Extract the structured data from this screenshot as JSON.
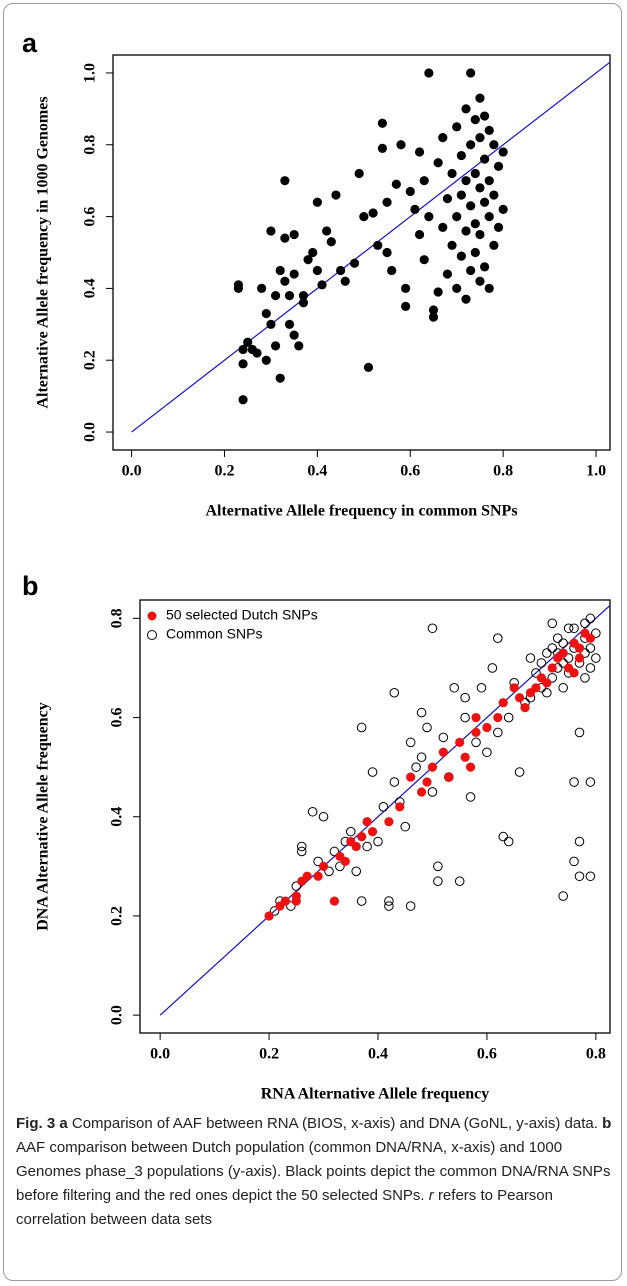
{
  "chart_data": [
    {
      "type": "scatter",
      "label": "a",
      "xlabel": "Alternative Allele frequency in common SNPs",
      "ylabel": "Alternative Allele frequency in 1000 Genomes",
      "xlim": [
        -0.04,
        1.03
      ],
      "ylim": [
        -0.05,
        1.05
      ],
      "xticks": [
        {
          "value": 0,
          "label": "0.0"
        },
        0.2,
        0.4,
        0.6,
        0.8,
        {
          "value": 1,
          "label": "1.0"
        }
      ],
      "yticks": [
        {
          "value": 0,
          "label": "0.0"
        },
        0.2,
        0.4,
        0.6,
        0.8,
        {
          "value": 1,
          "label": "1.0"
        }
      ],
      "diagonal": true,
      "diagonal_color": "#1010d0",
      "grid": false,
      "series": [
        {
          "color": "#000000",
          "marker": "filled",
          "x": [
            0.23,
            0.23,
            0.24,
            0.24,
            0.25,
            0.24,
            0.26,
            0.27,
            0.28,
            0.29,
            0.29,
            0.3,
            0.3,
            0.31,
            0.31,
            0.32,
            0.32,
            0.33,
            0.33,
            0.33,
            0.34,
            0.34,
            0.35,
            0.35,
            0.35,
            0.36,
            0.37,
            0.37,
            0.38,
            0.39,
            0.4,
            0.4,
            0.41,
            0.42,
            0.43,
            0.44,
            0.45,
            0.46,
            0.48,
            0.49,
            0.5,
            0.51,
            0.52,
            0.53,
            0.54,
            0.54,
            0.55,
            0.55,
            0.56,
            0.57,
            0.58,
            0.59,
            0.59,
            0.6,
            0.61,
            0.62,
            0.62,
            0.63,
            0.63,
            0.64,
            0.64,
            0.65,
            0.65,
            0.66,
            0.66,
            0.67,
            0.67,
            0.68,
            0.68,
            0.69,
            0.69,
            0.7,
            0.7,
            0.7,
            0.71,
            0.71,
            0.71,
            0.72,
            0.72,
            0.72,
            0.72,
            0.73,
            0.73,
            0.73,
            0.73,
            0.74,
            0.74,
            0.74,
            0.74,
            0.75,
            0.75,
            0.75,
            0.75,
            0.75,
            0.76,
            0.76,
            0.76,
            0.76,
            0.77,
            0.77,
            0.77,
            0.77,
            0.78,
            0.78,
            0.78,
            0.79,
            0.79,
            0.8,
            0.8
          ],
          "values": [
            0.41,
            0.4,
            0.09,
            0.19,
            0.25,
            0.23,
            0.23,
            0.22,
            0.4,
            0.2,
            0.33,
            0.56,
            0.3,
            0.24,
            0.38,
            0.15,
            0.45,
            0.7,
            0.54,
            0.42,
            0.38,
            0.3,
            0.55,
            0.44,
            0.27,
            0.24,
            0.38,
            0.36,
            0.48,
            0.5,
            0.45,
            0.64,
            0.41,
            0.56,
            0.53,
            0.66,
            0.45,
            0.42,
            0.47,
            0.72,
            0.6,
            0.18,
            0.61,
            0.52,
            0.86,
            0.79,
            0.64,
            0.5,
            0.45,
            0.69,
            0.8,
            0.35,
            0.4,
            0.67,
            0.62,
            0.78,
            0.55,
            0.7,
            0.48,
            1.0,
            0.6,
            0.34,
            0.32,
            0.75,
            0.39,
            0.57,
            0.82,
            0.65,
            0.44,
            0.72,
            0.52,
            0.85,
            0.6,
            0.4,
            0.77,
            0.66,
            0.49,
            0.9,
            0.7,
            0.56,
            0.37,
            1.0,
            0.8,
            0.63,
            0.45,
            0.87,
            0.72,
            0.58,
            0.5,
            0.93,
            0.82,
            0.68,
            0.55,
            0.42,
            0.88,
            0.76,
            0.64,
            0.46,
            0.84,
            0.7,
            0.6,
            0.4,
            0.8,
            0.66,
            0.52,
            0.74,
            0.57,
            0.78,
            0.62
          ]
        }
      ]
    },
    {
      "type": "scatter",
      "label": "b",
      "xlabel": "RNA Alternative Allele frequency",
      "ylabel": "DNA Alternative Allele frequency",
      "xlim": [
        -0.037,
        0.826
      ],
      "ylim": [
        -0.036,
        0.837
      ],
      "xticks": [
        {
          "value": 0,
          "label": "0.0"
        },
        0.2,
        0.4,
        0.6,
        0.8
      ],
      "yticks": [
        {
          "value": 0,
          "label": "0.0"
        },
        0.2,
        0.4,
        0.6,
        0.8
      ],
      "diagonal": true,
      "diagonal_color": "#1010d0",
      "grid": false,
      "legend": "top-left",
      "series": [
        {
          "name": "50  selected Dutch SNPs",
          "color": "#ee1111",
          "marker": "filled",
          "x": [
            0.2,
            0.22,
            0.23,
            0.25,
            0.25,
            0.26,
            0.27,
            0.29,
            0.3,
            0.32,
            0.33,
            0.34,
            0.35,
            0.36,
            0.37,
            0.38,
            0.39,
            0.42,
            0.44,
            0.46,
            0.48,
            0.49,
            0.5,
            0.52,
            0.53,
            0.55,
            0.56,
            0.57,
            0.58,
            0.58,
            0.6,
            0.62,
            0.63,
            0.65,
            0.66,
            0.67,
            0.69,
            0.7,
            0.72,
            0.73,
            0.74,
            0.75,
            0.76,
            0.77,
            0.78,
            0.77,
            0.79,
            0.76,
            0.71,
            0.68
          ],
          "values": [
            0.2,
            0.22,
            0.23,
            0.24,
            0.23,
            0.27,
            0.28,
            0.28,
            0.3,
            0.23,
            0.32,
            0.31,
            0.35,
            0.34,
            0.36,
            0.39,
            0.37,
            0.39,
            0.42,
            0.48,
            0.45,
            0.47,
            0.5,
            0.53,
            0.48,
            0.55,
            0.52,
            0.5,
            0.57,
            0.6,
            0.58,
            0.6,
            0.63,
            0.66,
            0.64,
            0.62,
            0.66,
            0.68,
            0.7,
            0.72,
            0.73,
            0.7,
            0.75,
            0.74,
            0.77,
            0.72,
            0.76,
            0.69,
            0.67,
            0.65
          ]
        },
        {
          "name": "Common SNPs",
          "color": "#000000",
          "marker": "open",
          "x": [
            0.21,
            0.22,
            0.24,
            0.25,
            0.26,
            0.26,
            0.28,
            0.29,
            0.3,
            0.31,
            0.32,
            0.33,
            0.34,
            0.35,
            0.36,
            0.37,
            0.37,
            0.38,
            0.39,
            0.4,
            0.41,
            0.42,
            0.42,
            0.43,
            0.43,
            0.44,
            0.45,
            0.46,
            0.46,
            0.47,
            0.48,
            0.48,
            0.49,
            0.5,
            0.5,
            0.51,
            0.51,
            0.52,
            0.53,
            0.54,
            0.55,
            0.56,
            0.56,
            0.57,
            0.58,
            0.59,
            0.6,
            0.61,
            0.62,
            0.62,
            0.63,
            0.64,
            0.64,
            0.65,
            0.66,
            0.67,
            0.68,
            0.68,
            0.69,
            0.7,
            0.7,
            0.71,
            0.71,
            0.72,
            0.72,
            0.73,
            0.73,
            0.74,
            0.74,
            0.74,
            0.75,
            0.75,
            0.76,
            0.76,
            0.76,
            0.76,
            0.77,
            0.77,
            0.77,
            0.77,
            0.78,
            0.78,
            0.78,
            0.79,
            0.79,
            0.79,
            0.79,
            0.79,
            0.8,
            0.8,
            0.75,
            0.73,
            0.74,
            0.72,
            0.78
          ],
          "values": [
            0.21,
            0.23,
            0.22,
            0.26,
            0.34,
            0.33,
            0.41,
            0.31,
            0.4,
            0.29,
            0.33,
            0.3,
            0.35,
            0.37,
            0.29,
            0.23,
            0.58,
            0.34,
            0.49,
            0.35,
            0.42,
            0.23,
            0.22,
            0.65,
            0.47,
            0.43,
            0.38,
            0.55,
            0.22,
            0.5,
            0.61,
            0.52,
            0.58,
            0.78,
            0.45,
            0.3,
            0.27,
            0.56,
            0.48,
            0.66,
            0.27,
            0.64,
            0.6,
            0.44,
            0.55,
            0.66,
            0.53,
            0.7,
            0.76,
            0.57,
            0.36,
            0.35,
            0.6,
            0.67,
            0.49,
            0.63,
            0.72,
            0.64,
            0.69,
            0.66,
            0.71,
            0.73,
            0.65,
            0.79,
            0.68,
            0.7,
            0.76,
            0.66,
            0.75,
            0.24,
            0.72,
            0.69,
            0.78,
            0.74,
            0.31,
            0.47,
            0.71,
            0.35,
            0.28,
            0.57,
            0.76,
            0.73,
            0.68,
            0.8,
            0.74,
            0.7,
            0.47,
            0.28,
            0.77,
            0.72,
            0.78,
            0.73,
            0.71,
            0.74,
            0.79
          ]
        }
      ]
    }
  ],
  "caption": {
    "fig": "Fig. 3",
    "a": "a",
    "text_a": "Comparison of AAF between RNA (BIOS, x-axis) and DNA (GoNL, y-axis) data.",
    "b": "b",
    "text_b": "AAF comparison between Dutch population (common DNA/RNA, x-axis) and 1000 Genomes phase_3 populations (y-axis). Black points depict the common DNA/RNA SNPs before filtering and the red ones depict the 50 selected SNPs.",
    "r": "r",
    "text_r": "refers to Pearson correlation between data sets"
  }
}
